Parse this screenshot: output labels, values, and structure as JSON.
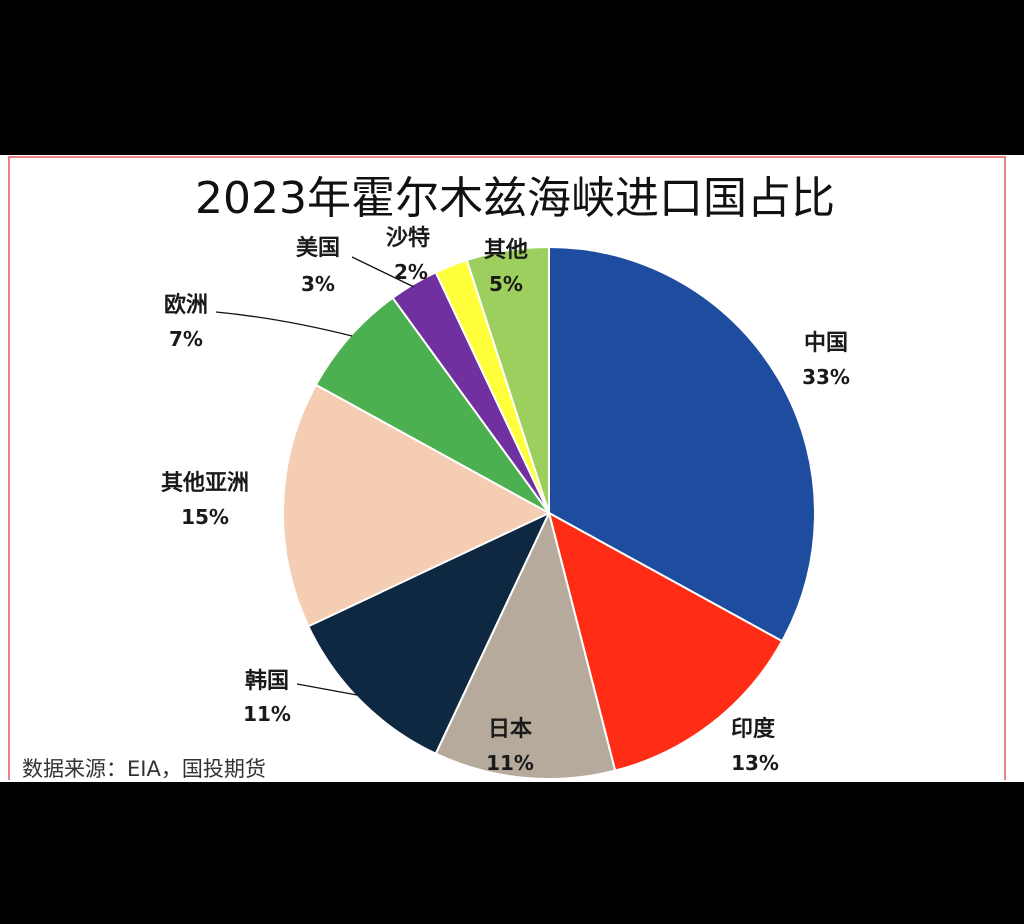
{
  "chart_data": {
    "type": "pie",
    "title": "2023年霍尔木兹海峡进口国占比",
    "categories": [
      "中国",
      "印度",
      "日本",
      "韩国",
      "其他亚洲",
      "欧洲",
      "美国",
      "沙特",
      "其他"
    ],
    "values": [
      33,
      13,
      11,
      11,
      15,
      7,
      3,
      2,
      5
    ],
    "data_labels": [
      "33%",
      "13%",
      "11%",
      "11%",
      "15%",
      "7%",
      "3%",
      "2%",
      "5%"
    ],
    "colors": [
      "#1E4C9F",
      "#FF2D16",
      "#B6AA9C",
      "#0E2841",
      "#F5CDB2",
      "#4CAF50",
      "#7030A0",
      "#FFFF3C",
      "#9CCF5E"
    ]
  },
  "source": "数据来源：EIA，国投期货"
}
